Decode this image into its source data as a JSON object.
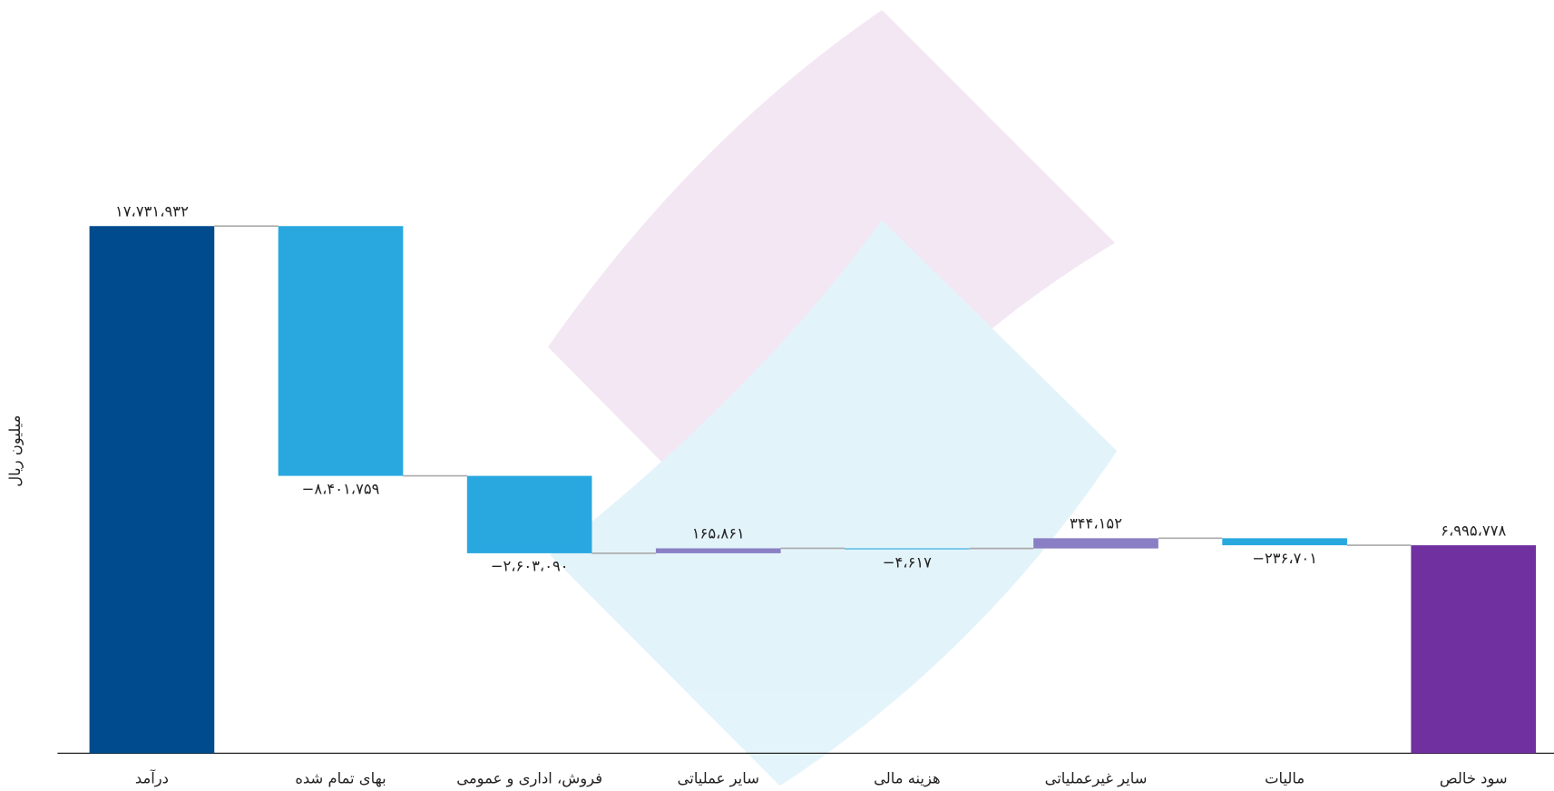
{
  "chart_data": {
    "type": "waterfall",
    "y_label": "میلیون ریال",
    "categories": [
      "درآمد",
      "بهای تمام شده",
      "فروش، اداری و عمومی",
      "سایر عملیاتی",
      "هزینه مالی",
      "سایر غیرعملیاتی",
      "مالیات",
      "سود خالص"
    ],
    "values": [
      17731932,
      -8401759,
      -2603090,
      165861,
      -4617,
      344152,
      -236701,
      6995778
    ],
    "value_labels": [
      "۱۷،۷۳۱،۹۳۲",
      "−۸،۴۰۱،۷۵۹",
      "−۲،۶۰۳،۰۹۰",
      "۱۶۵،۸۶۱",
      "−۴،۶۱۷",
      "۳۴۴،۱۵۲",
      "−۲۳۶،۷۰۱",
      "۶،۹۹۵،۷۷۸"
    ],
    "measures": [
      "total",
      "relative",
      "relative",
      "relative",
      "relative",
      "relative",
      "relative",
      "total"
    ],
    "colors": {
      "total_start": "#004b8d",
      "total_end": "#7030a0",
      "decrease": "#29a8e0",
      "increase": "#8a7fc4"
    },
    "ylim": [
      0,
      20000000
    ],
    "grid": false
  }
}
